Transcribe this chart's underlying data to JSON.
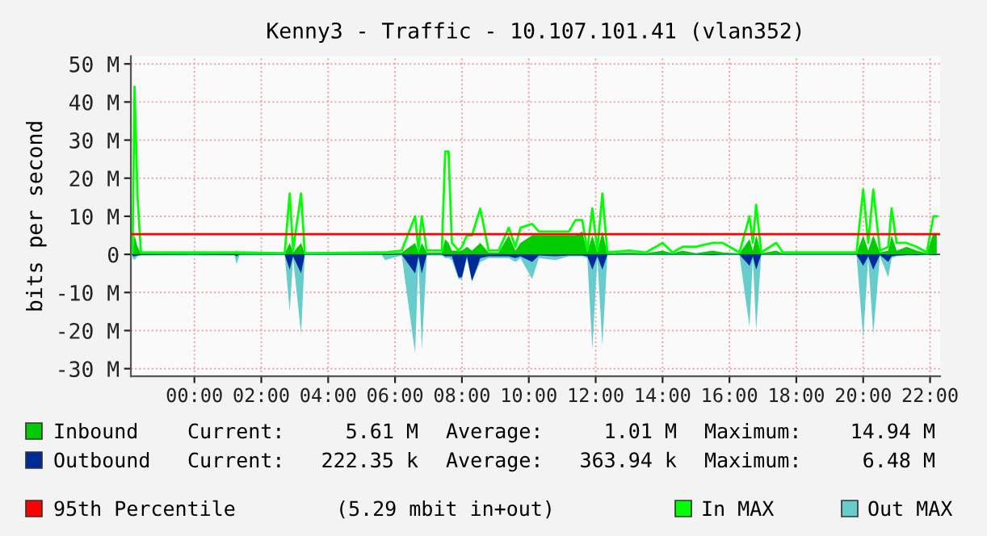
{
  "chart_data": {
    "type": "area",
    "title": "Kenny3 - Traffic - 10.107.101.41 (vlan352)",
    "ylabel": "bits per second",
    "x": [
      -1.85,
      -1.79,
      -1.7,
      -1.6,
      0.0,
      1.2,
      1.26,
      1.35,
      2.7,
      2.85,
      2.95,
      3.19,
      3.3,
      5.6,
      5.7,
      6.2,
      6.6,
      6.7,
      6.8,
      6.95,
      7.4,
      7.5,
      7.6,
      7.7,
      7.9,
      8.0,
      8.15,
      8.3,
      8.55,
      8.8,
      9.1,
      9.4,
      9.6,
      9.75,
      10.1,
      10.3,
      10.8,
      11.2,
      11.4,
      11.6,
      11.75,
      11.9,
      12.05,
      12.2,
      12.35,
      13.0,
      13.5,
      14.0,
      14.3,
      14.6,
      15.0,
      15.5,
      15.8,
      16.3,
      16.6,
      16.7,
      16.8,
      16.95,
      17.4,
      17.6,
      19.8,
      20.0,
      20.15,
      20.3,
      20.5,
      20.75,
      20.85,
      21.0,
      21.3,
      21.6,
      21.9,
      22.1,
      22.2
    ],
    "series": [
      {
        "name": "Out MAX",
        "color": "#66cccc",
        "values": [
          -1,
          -1.5,
          -0.5,
          -0.3,
          -0.3,
          -0.3,
          -2.5,
          -0.3,
          -0.2,
          -15,
          -1,
          -21,
          -0.2,
          -0.2,
          -1.5,
          -0.3,
          -26,
          -1,
          -25,
          -0.3,
          -0.3,
          -1,
          -1,
          -1.5,
          -6.5,
          -6.5,
          -1,
          -7,
          -2,
          -1,
          -1,
          -1,
          -2,
          -1,
          -6.5,
          -1,
          -1.5,
          -0.5,
          -0.5,
          -0.5,
          -1,
          -25,
          -1,
          -24,
          -0.2,
          -0.2,
          -0.2,
          -0.2,
          -0.2,
          -0.2,
          -0.2,
          -0.3,
          -0.2,
          -0.2,
          -19,
          -1,
          -20,
          -0.2,
          -0.2,
          -0.2,
          -0.2,
          -22,
          -1,
          -21,
          -0.5,
          -6,
          -1,
          -0.5,
          -0.3,
          -0.3,
          -0.2,
          -0.3,
          -0.3
        ]
      },
      {
        "name": "Outbound",
        "color": "#002a97",
        "values": [
          -0.5,
          -0.5,
          -0.3,
          -0.2,
          -0.1,
          -0.2,
          -0.5,
          -0.1,
          -0.1,
          -4,
          -0.5,
          -5,
          -0.1,
          -0.1,
          -0.2,
          -0.1,
          -5,
          -0.5,
          -5,
          -0.1,
          -0.1,
          -0.5,
          -0.5,
          -0.5,
          -6,
          -6,
          -0.5,
          -7,
          -1,
          -0.5,
          -0.5,
          -0.5,
          -1,
          -0.5,
          -2,
          -0.3,
          -0.5,
          -0.3,
          -0.3,
          -0.3,
          -0.5,
          -4,
          -0.5,
          -4,
          -0.1,
          -0.1,
          -0.1,
          -0.1,
          -0.1,
          -0.1,
          -0.1,
          -0.2,
          -0.1,
          -0.1,
          -3,
          -0.5,
          -4,
          -0.1,
          -0.1,
          -0.1,
          -0.1,
          -3,
          -0.5,
          -4,
          -0.2,
          -2,
          -0.5,
          -0.3,
          -0.2,
          -0.2,
          -0.1,
          -0.2,
          -0.2
        ]
      },
      {
        "name": "Inbound",
        "color": "#00cc00",
        "values": [
          0.5,
          5,
          2,
          0.3,
          0.3,
          0.3,
          0.3,
          0.3,
          0.2,
          3,
          0.5,
          3,
          0.2,
          0.2,
          0.3,
          0.5,
          3,
          0.5,
          3,
          0.5,
          0.5,
          4,
          3,
          1,
          1,
          1,
          2,
          1,
          3,
          0.5,
          0.5,
          5,
          1,
          3,
          5,
          5,
          5,
          5,
          5,
          6,
          0.5,
          5,
          0.5,
          6,
          0.3,
          0.5,
          0.3,
          1,
          0.3,
          1,
          0.3,
          1,
          0.5,
          0.3,
          4,
          1,
          5,
          0.3,
          1,
          0.2,
          0.2,
          5,
          1,
          5,
          0.5,
          1,
          5,
          1,
          2,
          1,
          0.3,
          5.6,
          5.6
        ]
      },
      {
        "name": "In MAX",
        "color": "#00ff00",
        "type": "line",
        "values": [
          0.5,
          44,
          15,
          0.5,
          0.5,
          0.5,
          0.6,
          0.5,
          0.3,
          16,
          1,
          16,
          0.3,
          0.5,
          0.5,
          1,
          10,
          1,
          10,
          1,
          1,
          27,
          27,
          3,
          1,
          2,
          5,
          5,
          12,
          1,
          1,
          7,
          2,
          7,
          8,
          6,
          6,
          6,
          9,
          9,
          1,
          12,
          1,
          16,
          0.5,
          1,
          0.5,
          3,
          0.5,
          2,
          2,
          3,
          3,
          0.5,
          10,
          3,
          13,
          0.5,
          3,
          0.5,
          0.5,
          17,
          3,
          17,
          1,
          2,
          12,
          3,
          3,
          2,
          0.5,
          10,
          10
        ]
      }
    ],
    "xlim": [
      -1.9,
      22.3
    ],
    "xticks": [
      {
        "value": 0,
        "label": "00:00"
      },
      {
        "value": 2,
        "label": "02:00"
      },
      {
        "value": 4,
        "label": "04:00"
      },
      {
        "value": 6,
        "label": "06:00"
      },
      {
        "value": 8,
        "label": "08:00"
      },
      {
        "value": 10,
        "label": "10:00"
      },
      {
        "value": 12,
        "label": "12:00"
      },
      {
        "value": 14,
        "label": "14:00"
      },
      {
        "value": 16,
        "label": "16:00"
      },
      {
        "value": 18,
        "label": "18:00"
      },
      {
        "value": 20,
        "label": "20:00"
      },
      {
        "value": 22,
        "label": "22:00"
      }
    ],
    "ylim": [
      -32,
      52
    ],
    "yticks": [
      {
        "value": 50,
        "label": "50 M"
      },
      {
        "value": 40,
        "label": "40 M"
      },
      {
        "value": 30,
        "label": "30 M"
      },
      {
        "value": 20,
        "label": "20 M"
      },
      {
        "value": 10,
        "label": "10 M"
      },
      0,
      {
        "value": -10,
        "label": "-10 M"
      },
      {
        "value": -20,
        "label": "-20 M"
      },
      {
        "value": -30,
        "label": "-30 M"
      }
    ],
    "ref_lines": [
      {
        "axis": "y",
        "value": 5.29,
        "label": "95th Percentile",
        "color": "#ff0000"
      }
    ],
    "annotations": [
      "Current:     5.61 M",
      "Average:     1.01 M",
      "Maximum:    14.94 M",
      "Current:   222.35 k",
      "Average:   363.94 k",
      "Maximum:     6.48 M",
      "(5.29 mbit in+out)"
    ],
    "grid": true,
    "legend": "bottom"
  }
}
